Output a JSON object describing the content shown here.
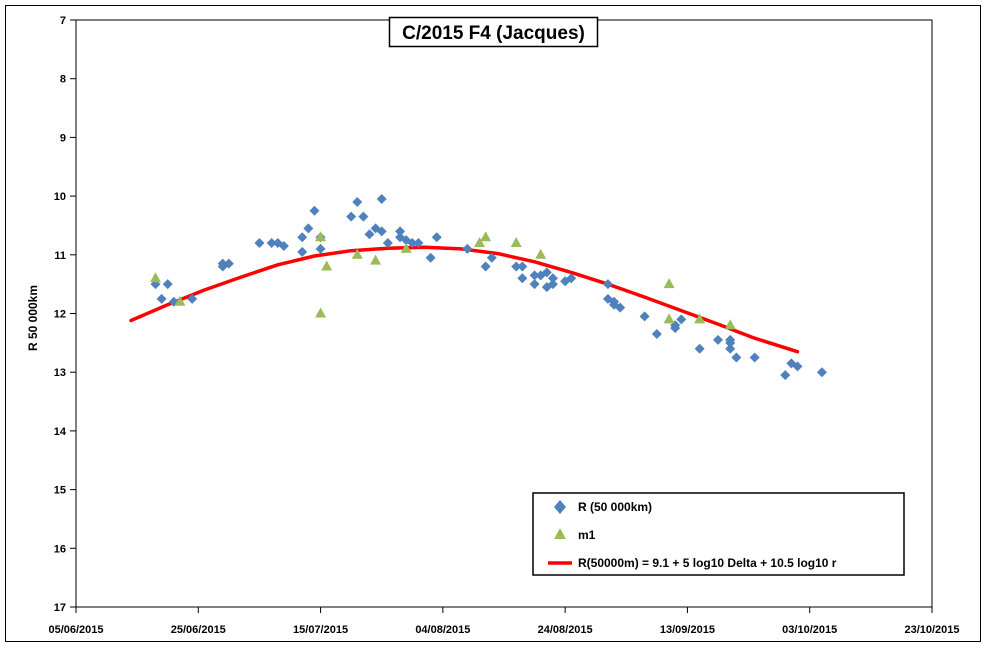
{
  "chart_data": {
    "type": "scatter",
    "title": "C/2015 F4 (Jacques)",
    "xlabel": "",
    "ylabel": "R 50 000km",
    "x_ticks": [
      "05/06/2015",
      "25/06/2015",
      "15/07/2015",
      "04/08/2015",
      "24/08/2015",
      "13/09/2015",
      "03/10/2015",
      "23/10/2015"
    ],
    "x_range": [
      "05/06/2015",
      "23/10/2015"
    ],
    "y_ticks": [
      7,
      8,
      9,
      10,
      11,
      12,
      13,
      14,
      15,
      16,
      17
    ],
    "ylim": [
      7,
      17
    ],
    "y_inverted": true,
    "grid": false,
    "legend_position": "bottom-right",
    "series": [
      {
        "name": "R (50 000km)",
        "marker": "diamond",
        "color": "#4f81bd",
        "points": [
          [
            "2015-06-18",
            11.5
          ],
          [
            "2015-06-19",
            11.75
          ],
          [
            "2015-06-20",
            11.5
          ],
          [
            "2015-06-21",
            11.8
          ],
          [
            "2015-06-24",
            11.75
          ],
          [
            "2015-06-29",
            11.2
          ],
          [
            "2015-06-29",
            11.15
          ],
          [
            "2015-06-30",
            11.15
          ],
          [
            "2015-07-05",
            10.8
          ],
          [
            "2015-07-07",
            10.8
          ],
          [
            "2015-07-08",
            10.8
          ],
          [
            "2015-07-09",
            10.85
          ],
          [
            "2015-07-12",
            10.7
          ],
          [
            "2015-07-12",
            10.95
          ],
          [
            "2015-07-13",
            10.55
          ],
          [
            "2015-07-14",
            10.25
          ],
          [
            "2015-07-15",
            10.7
          ],
          [
            "2015-07-15",
            10.9
          ],
          [
            "2015-07-20",
            10.35
          ],
          [
            "2015-07-21",
            10.1
          ],
          [
            "2015-07-22",
            10.35
          ],
          [
            "2015-07-23",
            10.65
          ],
          [
            "2015-07-24",
            10.55
          ],
          [
            "2015-07-25",
            10.6
          ],
          [
            "2015-07-25",
            10.05
          ],
          [
            "2015-07-26",
            10.8
          ],
          [
            "2015-07-28",
            10.6
          ],
          [
            "2015-07-28",
            10.7
          ],
          [
            "2015-07-29",
            10.75
          ],
          [
            "2015-07-30",
            10.8
          ],
          [
            "2015-07-31",
            10.8
          ],
          [
            "2015-08-02",
            11.05
          ],
          [
            "2015-08-03",
            10.7
          ],
          [
            "2015-08-08",
            10.9
          ],
          [
            "2015-08-11",
            11.2
          ],
          [
            "2015-08-12",
            11.05
          ],
          [
            "2015-08-16",
            11.2
          ],
          [
            "2015-08-17",
            11.4
          ],
          [
            "2015-08-17",
            11.2
          ],
          [
            "2015-08-19",
            11.5
          ],
          [
            "2015-08-19",
            11.35
          ],
          [
            "2015-08-20",
            11.35
          ],
          [
            "2015-08-21",
            11.55
          ],
          [
            "2015-08-21",
            11.3
          ],
          [
            "2015-08-22",
            11.4
          ],
          [
            "2015-08-22",
            11.5
          ],
          [
            "2015-08-24",
            11.45
          ],
          [
            "2015-08-25",
            11.4
          ],
          [
            "2015-08-31",
            11.5
          ],
          [
            "2015-08-31",
            11.75
          ],
          [
            "2015-09-01",
            11.8
          ],
          [
            "2015-09-01",
            11.85
          ],
          [
            "2015-09-02",
            11.9
          ],
          [
            "2015-09-06",
            12.05
          ],
          [
            "2015-09-08",
            12.35
          ],
          [
            "2015-09-11",
            12.25
          ],
          [
            "2015-09-11",
            12.2
          ],
          [
            "2015-09-12",
            12.1
          ],
          [
            "2015-09-15",
            12.6
          ],
          [
            "2015-09-18",
            12.45
          ],
          [
            "2015-09-20",
            12.45
          ],
          [
            "2015-09-20",
            12.5
          ],
          [
            "2015-09-20",
            12.6
          ],
          [
            "2015-09-21",
            12.75
          ],
          [
            "2015-09-24",
            12.75
          ],
          [
            "2015-09-29",
            13.05
          ],
          [
            "2015-09-30",
            12.85
          ],
          [
            "2015-10-01",
            12.9
          ],
          [
            "2015-10-05",
            13.0
          ]
        ]
      },
      {
        "name": "m1",
        "marker": "triangle",
        "color": "#9bbb59",
        "points": [
          [
            "2015-06-18",
            11.4
          ],
          [
            "2015-06-22",
            11.8
          ],
          [
            "2015-07-15",
            10.7
          ],
          [
            "2015-07-15",
            12.0
          ],
          [
            "2015-07-16",
            11.2
          ],
          [
            "2015-07-21",
            11.0
          ],
          [
            "2015-07-24",
            11.1
          ],
          [
            "2015-07-29",
            10.9
          ],
          [
            "2015-08-10",
            10.8
          ],
          [
            "2015-08-11",
            10.7
          ],
          [
            "2015-08-16",
            10.8
          ],
          [
            "2015-08-20",
            11.0
          ],
          [
            "2015-09-10",
            11.5
          ],
          [
            "2015-09-10",
            12.1
          ],
          [
            "2015-09-15",
            12.1
          ],
          [
            "2015-09-20",
            12.2
          ]
        ]
      },
      {
        "name": "R(50000m) = 9.1 + 5 log10 Delta + 10.5  log10 r",
        "type": "line",
        "color": "#ff0000",
        "points": [
          [
            "2015-06-14",
            12.12
          ],
          [
            "2015-06-20",
            11.85
          ],
          [
            "2015-06-26",
            11.6
          ],
          [
            "2015-07-02",
            11.38
          ],
          [
            "2015-07-08",
            11.17
          ],
          [
            "2015-07-14",
            11.02
          ],
          [
            "2015-07-20",
            10.93
          ],
          [
            "2015-07-26",
            10.89
          ],
          [
            "2015-08-01",
            10.87
          ],
          [
            "2015-08-07",
            10.9
          ],
          [
            "2015-08-13",
            10.98
          ],
          [
            "2015-08-19",
            11.12
          ],
          [
            "2015-08-25",
            11.3
          ],
          [
            "2015-08-31",
            11.5
          ],
          [
            "2015-09-06",
            11.72
          ],
          [
            "2015-09-12",
            11.95
          ],
          [
            "2015-09-18",
            12.18
          ],
          [
            "2015-09-24",
            12.42
          ],
          [
            "2015-10-01",
            12.65
          ]
        ]
      }
    ]
  }
}
